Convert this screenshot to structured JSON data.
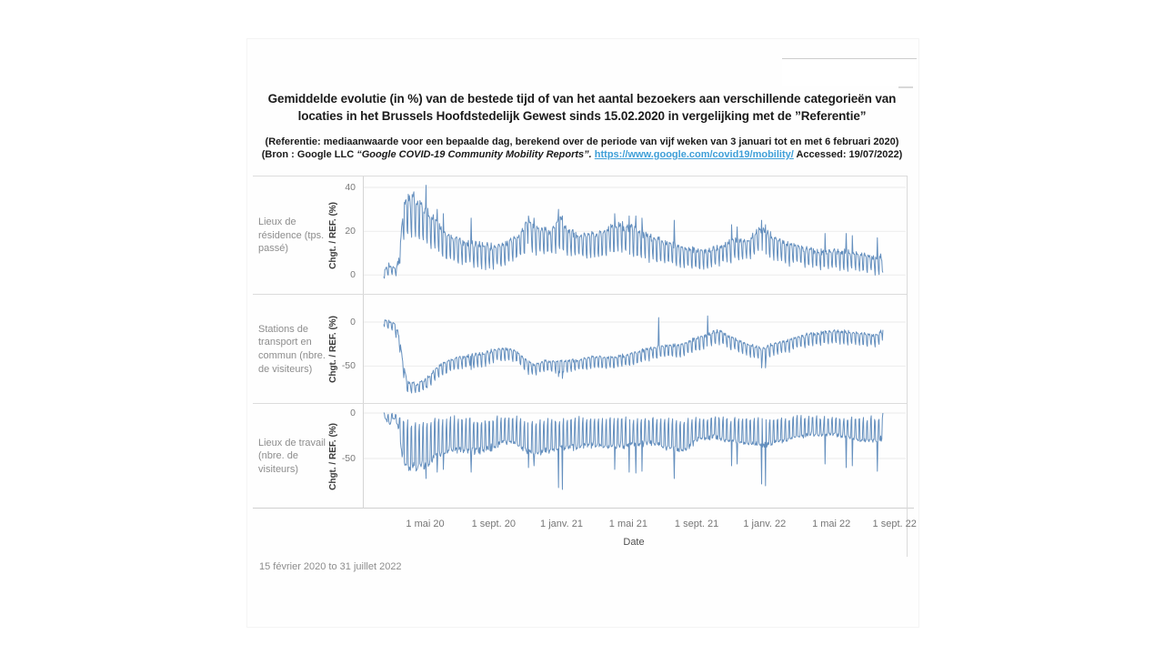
{
  "header": {
    "title_line1": "Gemiddelde evolutie (in %) van de bestede tijd of van het aantal bezoekers aan verschillende categorieën van",
    "title_line2": "locaties in het Brussels Hoofdstedelijk Gewest sinds 15.02.2020 in vergelijking met de ”Referentie”",
    "note_line1": "(Referentie: mediaanwaarde voor een bepaalde dag, berekend over de periode van vijf weken van 3 januari tot en met 6 februari 2020)",
    "note2_prefix": "(Bron : Google LLC ",
    "note2_italic": "“Google COVID-19 Community Mobility Reports”. ",
    "note2_link": "https://www.google.com/covid19/mobility/",
    "note2_suffix": " Accessed: 19/07/2022)"
  },
  "footer": {
    "caption": "15 février 2020 to 31 juillet 2022"
  },
  "chart_data": {
    "type": "line",
    "title": "Gemiddelde evolutie (in %) van de bestede tijd of van het aantal bezoekers aan verschillende categorieën van locaties in het Brussels Hoofdstedelijk Gewest sinds 15.02.2020 in vergelijking met de ”Referentie”",
    "line_color": "#4f80b5",
    "grid_color": "#ebebeb",
    "x_start": "15 février 2020",
    "x_end": "31 juillet 2022",
    "total_days": 897,
    "xlabel": "Date",
    "x_ticks": [
      {
        "day": 76,
        "label": "1 mai 20"
      },
      {
        "day": 199,
        "label": "1 sept. 20"
      },
      {
        "day": 321,
        "label": "1 janv. 21"
      },
      {
        "day": 441,
        "label": "1 mai 21"
      },
      {
        "day": 564,
        "label": "1 sept. 21"
      },
      {
        "day": 686,
        "label": "1 janv. 22"
      },
      {
        "day": 806,
        "label": "1 mai 22"
      },
      {
        "day": 929,
        "label": "1 sept. 22"
      }
    ],
    "panels": [
      {
        "row_label": "Lieux de résidence (tps. passé)",
        "ylabel": "Chgt. / REF. (%)",
        "yticks": [
          40,
          20,
          0
        ],
        "ylim": [
          -9,
          45
        ],
        "mode": "weekday_high",
        "envelope": [
          [
            0,
            -1,
            1
          ],
          [
            8,
            0,
            5
          ],
          [
            14,
            0,
            4
          ],
          [
            20,
            0,
            3
          ],
          [
            26,
            1,
            6
          ],
          [
            31,
            8,
            18
          ],
          [
            36,
            16,
            33
          ],
          [
            45,
            18,
            36
          ],
          [
            55,
            18,
            36
          ],
          [
            70,
            16,
            32
          ],
          [
            85,
            13,
            27
          ],
          [
            100,
            10,
            22
          ],
          [
            115,
            7,
            18
          ],
          [
            135,
            5,
            16
          ],
          [
            165,
            4,
            14
          ],
          [
            195,
            3,
            13
          ],
          [
            215,
            4,
            14
          ],
          [
            240,
            7,
            18
          ],
          [
            258,
            10,
            24
          ],
          [
            275,
            10,
            22
          ],
          [
            300,
            9,
            20
          ],
          [
            316,
            12,
            26
          ],
          [
            330,
            9,
            20
          ],
          [
            355,
            8,
            18
          ],
          [
            385,
            8,
            19
          ],
          [
            415,
            10,
            23
          ],
          [
            445,
            9,
            22
          ],
          [
            475,
            7,
            18
          ],
          [
            505,
            5,
            15
          ],
          [
            535,
            4,
            13
          ],
          [
            565,
            3,
            11
          ],
          [
            595,
            4,
            12
          ],
          [
            625,
            6,
            16
          ],
          [
            655,
            7,
            16
          ],
          [
            679,
            10,
            22
          ],
          [
            700,
            7,
            17
          ],
          [
            730,
            5,
            14
          ],
          [
            760,
            4,
            12
          ],
          [
            790,
            3,
            11
          ],
          [
            820,
            3,
            11
          ],
          [
            850,
            2,
            10
          ],
          [
            880,
            1,
            8
          ],
          [
            897,
            1,
            9
          ]
        ],
        "holidays": [
          [
            76,
            41
          ],
          [
            96,
            30
          ],
          [
            107,
            28
          ],
          [
            157,
            26
          ],
          [
            260,
            27
          ],
          [
            270,
            26
          ],
          [
            314,
            30
          ],
          [
            321,
            27
          ],
          [
            415,
            28
          ],
          [
            441,
            27
          ],
          [
            453,
            27
          ],
          [
            464,
            26
          ],
          [
            522,
            25
          ],
          [
            625,
            23
          ],
          [
            635,
            22
          ],
          [
            679,
            25
          ],
          [
            686,
            23
          ],
          [
            793,
            19
          ],
          [
            831,
            19
          ],
          [
            842,
            18
          ],
          [
            887,
            17
          ]
        ]
      },
      {
        "row_label": "Stations de transport en commun (nbre. de visiteurs)",
        "ylabel": "Chgt. / REF. (%)",
        "yticks": [
          0,
          -50
        ],
        "ylim": [
          -93,
          31
        ],
        "mode": "weekday_high",
        "envelope": [
          [
            0,
            -4,
            2
          ],
          [
            10,
            -8,
            1
          ],
          [
            20,
            -12,
            -2
          ],
          [
            28,
            -30,
            -15
          ],
          [
            33,
            -55,
            -40
          ],
          [
            42,
            -80,
            -68
          ],
          [
            60,
            -80,
            -70
          ],
          [
            76,
            -76,
            -64
          ],
          [
            90,
            -68,
            -56
          ],
          [
            105,
            -60,
            -47
          ],
          [
            125,
            -55,
            -42
          ],
          [
            150,
            -52,
            -38
          ],
          [
            180,
            -50,
            -36
          ],
          [
            200,
            -45,
            -31
          ],
          [
            220,
            -44,
            -30
          ],
          [
            240,
            -46,
            -33
          ],
          [
            258,
            -58,
            -45
          ],
          [
            270,
            -60,
            -48
          ],
          [
            290,
            -56,
            -44
          ],
          [
            320,
            -58,
            -45
          ],
          [
            350,
            -55,
            -43
          ],
          [
            380,
            -52,
            -39
          ],
          [
            410,
            -53,
            -40
          ],
          [
            440,
            -50,
            -37
          ],
          [
            470,
            -44,
            -31
          ],
          [
            500,
            -40,
            -27
          ],
          [
            530,
            -40,
            -26
          ],
          [
            560,
            -33,
            -19
          ],
          [
            590,
            -27,
            -12
          ],
          [
            605,
            -25,
            -9
          ],
          [
            620,
            -30,
            -16
          ],
          [
            650,
            -38,
            -24
          ],
          [
            679,
            -45,
            -30
          ],
          [
            700,
            -38,
            -25
          ],
          [
            730,
            -33,
            -20
          ],
          [
            760,
            -28,
            -14
          ],
          [
            790,
            -25,
            -11
          ],
          [
            820,
            -24,
            -10
          ],
          [
            850,
            -26,
            -12
          ],
          [
            880,
            -28,
            -15
          ],
          [
            897,
            -22,
            -9
          ]
        ],
        "holidays": [
          [
            76,
            -74
          ],
          [
            157,
            -54
          ],
          [
            314,
            -62
          ],
          [
            321,
            -64
          ],
          [
            494,
            5
          ],
          [
            582,
            7
          ],
          [
            679,
            -52
          ],
          [
            686,
            -52
          ],
          [
            897,
            -9
          ]
        ]
      },
      {
        "row_label": "Lieux de travail (nbre. de visiteurs)",
        "ylabel": "Chgt. / REF. (%)",
        "yticks": [
          0,
          -50
        ],
        "ylim": [
          -105,
          10
        ],
        "mode": "weekday_low",
        "envelope": [
          [
            0,
            -4,
            1
          ],
          [
            7,
            -10,
            -1
          ],
          [
            12,
            -12,
            -2
          ],
          [
            16,
            -6,
            0
          ],
          [
            22,
            -8,
            -1
          ],
          [
            28,
            -20,
            -4
          ],
          [
            33,
            -50,
            -8
          ],
          [
            42,
            -62,
            -10
          ],
          [
            60,
            -60,
            -8
          ],
          [
            76,
            -58,
            -8
          ],
          [
            90,
            -52,
            -7
          ],
          [
            105,
            -47,
            -6
          ],
          [
            125,
            -42,
            -6
          ],
          [
            150,
            -42,
            -8
          ],
          [
            170,
            -44,
            -8
          ],
          [
            195,
            -40,
            -7
          ],
          [
            215,
            -32,
            -5
          ],
          [
            240,
            -34,
            -6
          ],
          [
            258,
            -45,
            -10
          ],
          [
            275,
            -45,
            -9
          ],
          [
            300,
            -42,
            -8
          ],
          [
            330,
            -40,
            -7
          ],
          [
            360,
            -37,
            -6
          ],
          [
            390,
            -37,
            -6
          ],
          [
            420,
            -38,
            -7
          ],
          [
            450,
            -36,
            -7
          ],
          [
            480,
            -34,
            -6
          ],
          [
            510,
            -40,
            -8
          ],
          [
            540,
            -42,
            -8
          ],
          [
            565,
            -30,
            -5
          ],
          [
            595,
            -27,
            -5
          ],
          [
            625,
            -32,
            -7
          ],
          [
            655,
            -34,
            -7
          ],
          [
            685,
            -36,
            -8
          ],
          [
            715,
            -32,
            -6
          ],
          [
            745,
            -27,
            -5
          ],
          [
            775,
            -24,
            -4
          ],
          [
            805,
            -24,
            -5
          ],
          [
            835,
            -27,
            -5
          ],
          [
            865,
            -32,
            -6
          ],
          [
            890,
            -30,
            -5
          ],
          [
            897,
            -28,
            0
          ]
        ],
        "holidays": [
          [
            76,
            -72
          ],
          [
            96,
            -65
          ],
          [
            107,
            -62
          ],
          [
            157,
            -65
          ],
          [
            260,
            -60
          ],
          [
            270,
            -58
          ],
          [
            314,
            -82
          ],
          [
            321,
            -84
          ],
          [
            415,
            -62
          ],
          [
            441,
            -65
          ],
          [
            453,
            -66
          ],
          [
            464,
            -64
          ],
          [
            522,
            -72
          ],
          [
            625,
            -58
          ],
          [
            635,
            -56
          ],
          [
            679,
            -78
          ],
          [
            686,
            -80
          ],
          [
            793,
            -56
          ],
          [
            831,
            -60
          ],
          [
            842,
            -58
          ],
          [
            887,
            -64
          ],
          [
            897,
            0
          ]
        ]
      }
    ]
  }
}
